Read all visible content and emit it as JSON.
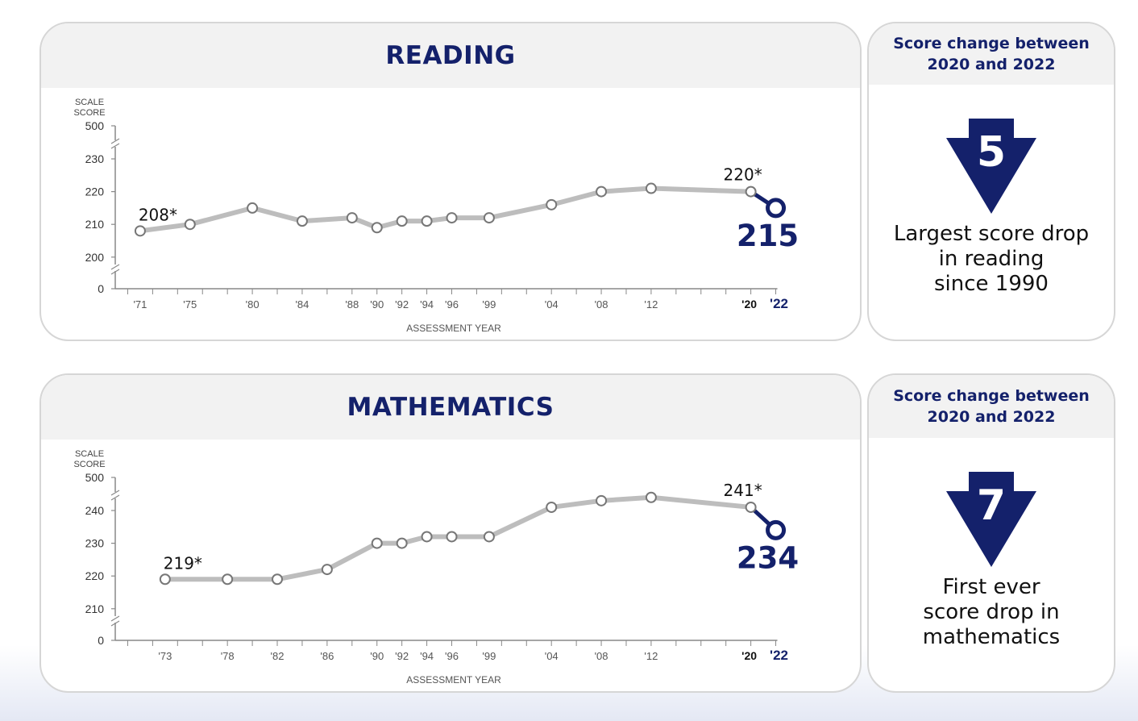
{
  "colors": {
    "navy": "#14216b",
    "line": "#bdbdbd",
    "axis": "#888888",
    "panel_border": "#d6d6d6",
    "header_bg": "#f2f2f2"
  },
  "chart_data": [
    {
      "type": "line",
      "title": "READING",
      "ylabel": "SCALE SCORE",
      "xlabel": "ASSESSMENT YEAR",
      "y_ticks": [
        "500",
        "230",
        "220",
        "210",
        "200",
        "0"
      ],
      "axis_break": true,
      "x": [
        "'71",
        "'75",
        "'80",
        "'84",
        "'88",
        "'90",
        "'92",
        "'94",
        "'96",
        "'99",
        "'04",
        "'08",
        "'12",
        "'20",
        "'22"
      ],
      "x_years": [
        1971,
        1975,
        1980,
        1984,
        1988,
        1990,
        1992,
        1994,
        1996,
        1999,
        2004,
        2008,
        2012,
        2020,
        2022
      ],
      "series": [
        {
          "values": [
            208,
            210,
            215,
            211,
            212,
            209,
            211,
            211,
            212,
            212,
            216,
            220,
            221,
            220,
            215
          ]
        }
      ],
      "annotations": [
        {
          "year": 1971,
          "text": "208*"
        },
        {
          "year": 2020,
          "text": "220*"
        },
        {
          "year": 2022,
          "text": "215"
        }
      ],
      "ylim": [
        200,
        230
      ]
    },
    {
      "type": "line",
      "title": "MATHEMATICS",
      "ylabel": "SCALE SCORE",
      "xlabel": "ASSESSMENT YEAR",
      "y_ticks": [
        "500",
        "240",
        "230",
        "220",
        "210",
        "0"
      ],
      "axis_break": true,
      "x": [
        "'73",
        "'78",
        "'82",
        "'86",
        "'90",
        "'92",
        "'94",
        "'96",
        "'99",
        "'04",
        "'08",
        "'12",
        "'20",
        "'22"
      ],
      "x_years": [
        1973,
        1978,
        1982,
        1986,
        1990,
        1992,
        1994,
        1996,
        1999,
        2004,
        2008,
        2012,
        2020,
        2022
      ],
      "series": [
        {
          "values": [
            219,
            219,
            219,
            222,
            230,
            230,
            232,
            232,
            232,
            241,
            243,
            244,
            241,
            234
          ]
        }
      ],
      "annotations": [
        {
          "year": 1973,
          "text": "219*"
        },
        {
          "year": 2020,
          "text": "241*"
        },
        {
          "year": 2022,
          "text": "234"
        }
      ],
      "ylim": [
        210,
        240
      ]
    }
  ],
  "side": [
    {
      "title": "Score change between\n2020 and 2022",
      "change": "5",
      "caption": "Largest score drop\nin reading\nsince 1990"
    },
    {
      "title": "Score change between\n2020 and 2022",
      "change": "7",
      "caption": "First ever\nscore drop in\nmathematics"
    }
  ]
}
